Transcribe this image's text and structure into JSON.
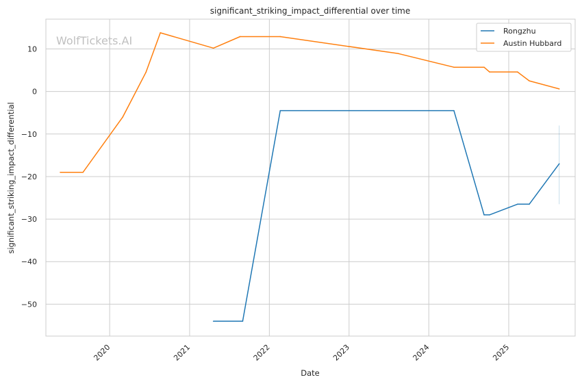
{
  "chart_data": {
    "type": "line",
    "title": "significant_striking_impact_differential over time",
    "xlabel": "Date",
    "ylabel": "significant_striking_impact_differential",
    "xlim": [
      "2019-03-15",
      "2025-11-01"
    ],
    "ylim": [
      -57.5,
      17
    ],
    "x_ticks": [
      "2020",
      "2021",
      "2022",
      "2023",
      "2024",
      "2025"
    ],
    "x_tick_dates": [
      "2020-01-01",
      "2021-01-01",
      "2022-01-01",
      "2023-01-01",
      "2024-01-01",
      "2025-01-01"
    ],
    "y_ticks": [
      10,
      0,
      -10,
      -20,
      -30,
      -40,
      -50
    ],
    "y_tick_labels": [
      "10",
      "0",
      "−10",
      "−20",
      "−30",
      "−40",
      "−50"
    ],
    "grid": true,
    "legend_position": "top-right",
    "watermark": "WolfTickets.AI",
    "series": [
      {
        "name": "Rongzhu",
        "color": "#1f77b4",
        "points": [
          {
            "x": "2021-04-20",
            "y": -54
          },
          {
            "x": "2021-09-01",
            "y": -54
          },
          {
            "x": "2022-02-20",
            "y": -4.5
          },
          {
            "x": "2024-04-25",
            "y": -4.5
          },
          {
            "x": "2024-09-10",
            "y": -29
          },
          {
            "x": "2024-10-05",
            "y": -29
          },
          {
            "x": "2025-02-10",
            "y": -26.5
          },
          {
            "x": "2025-04-05",
            "y": -26.5
          },
          {
            "x": "2025-08-20",
            "y": -17
          }
        ],
        "band": {
          "x": "2025-08-20",
          "low": -26.5,
          "high": -8
        }
      },
      {
        "name": "Austin Hubbard",
        "color": "#ff7f0e",
        "points": [
          {
            "x": "2019-05-20",
            "y": -19
          },
          {
            "x": "2019-09-01",
            "y": -19
          },
          {
            "x": "2020-03-01",
            "y": -6
          },
          {
            "x": "2020-06-15",
            "y": 4.5
          },
          {
            "x": "2020-08-20",
            "y": 13.8
          },
          {
            "x": "2021-04-20",
            "y": 10.2
          },
          {
            "x": "2021-08-20",
            "y": 12.9
          },
          {
            "x": "2022-02-20",
            "y": 12.9
          },
          {
            "x": "2023-08-15",
            "y": 8.9
          },
          {
            "x": "2024-04-25",
            "y": 5.7
          },
          {
            "x": "2024-09-10",
            "y": 5.7
          },
          {
            "x": "2024-10-05",
            "y": 4.6
          },
          {
            "x": "2025-02-10",
            "y": 4.6
          },
          {
            "x": "2025-04-05",
            "y": 2.5
          },
          {
            "x": "2025-08-20",
            "y": 0.6
          }
        ]
      }
    ]
  }
}
